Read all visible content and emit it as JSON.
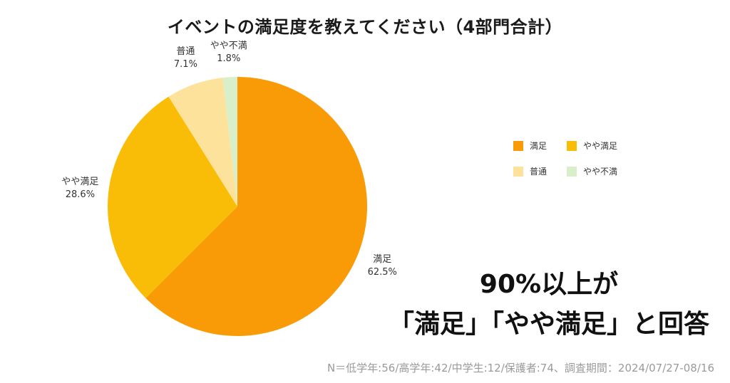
{
  "chart_data": {
    "type": "pie",
    "title": "イベントの満足度を教えてください（4部門合計）",
    "slices": [
      {
        "label": "満足",
        "value": 62.5,
        "display": "62.5%",
        "color": "#F99B07"
      },
      {
        "label": "やや満足",
        "value": 28.6,
        "display": "28.6%",
        "color": "#FABD07"
      },
      {
        "label": "普通",
        "value": 7.1,
        "display": "7.1%",
        "color": "#FCE29B"
      },
      {
        "label": "やや不満",
        "value": 1.8,
        "display": "1.8%",
        "color": "#D9EFC9"
      }
    ],
    "legend": {
      "placement": "right",
      "columns": 2
    }
  },
  "message": {
    "line1": "90%以上が",
    "line2": "「満足」「やや満足」と回答"
  },
  "footnote": "N＝低学年:56/高学年:42/中学生:12/保護者:74、調査期間：2024/07/27-08/16"
}
